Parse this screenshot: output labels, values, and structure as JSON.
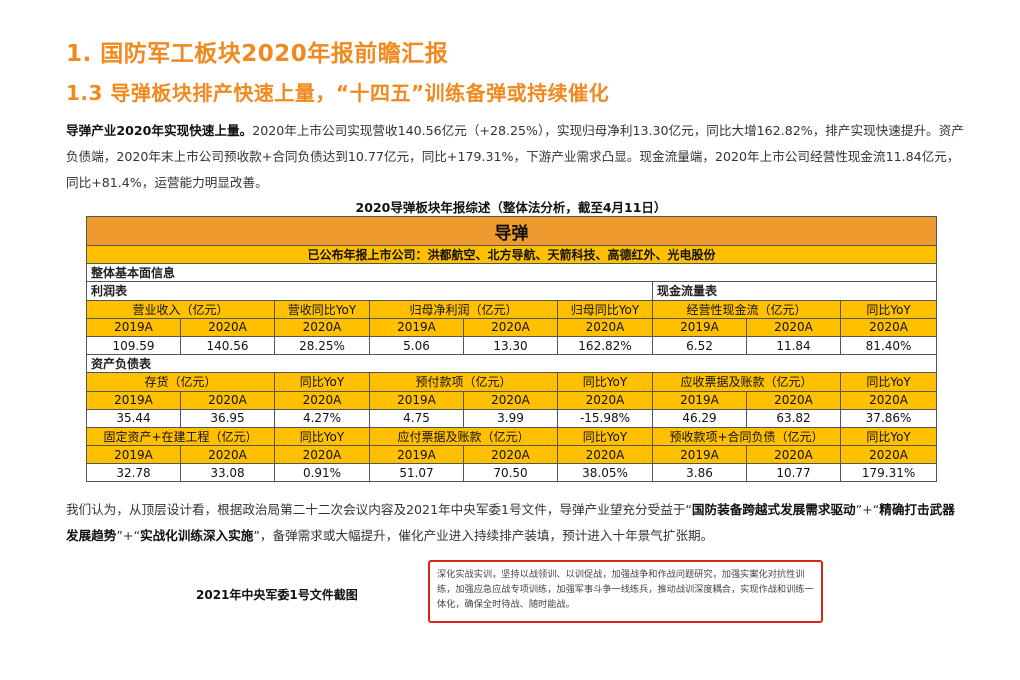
{
  "headings": {
    "h1": "1. 国防军工板块2020年报前瞻汇报",
    "h2": "1.3 导弹板块排产快速上量，“十四五”训练备弹或持续催化"
  },
  "paragraph": {
    "lead": "导弹产业2020年实现快速上量。",
    "body": "2020年上市公司实现营收140.56亿元（+28.25%），实现归母净利13.30亿元，同比大增162.82%，排产实现快速提升。资产负债端，2020年末上市公司预收款+合同负债达到10.77亿元，同比+179.31%，下游产业需求凸显。现金流量端，2020年上市公司经营性现金流11.84亿元，同比+81.4%，运营能力明显改善。"
  },
  "table": {
    "title": "2020导弹板块年报综述（整体法分析，截至4月11日）",
    "sector": "导弹",
    "companies": "已公布年报上市公司：洪都航空、北方导航、天箭科技、高德红外、光电股份",
    "section_overview": "整体基本面信息",
    "section_income": "利润表",
    "section_cashflow": "现金流量表",
    "section_balance": "资产负债表",
    "rows": {
      "income": {
        "h1": "营业收入（亿元）",
        "h2": "营收同比YoY",
        "h3": "归母净利润（亿元）",
        "h4": "归母同比YoY",
        "h5": "经营性现金流（亿元）",
        "h6": "同比YoY",
        "y": [
          "2019A",
          "2020A",
          "2020A",
          "2019A",
          "2020A",
          "2020A",
          "2019A",
          "2020A",
          "2020A"
        ],
        "v": [
          "109.59",
          "140.56",
          "28.25%",
          "5.06",
          "13.30",
          "162.82%",
          "6.52",
          "11.84",
          "81.40%"
        ]
      },
      "balance1": {
        "h1": "存货（亿元）",
        "h2": "同比YoY",
        "h3": "预付款项（亿元）",
        "h4": "同比YoY",
        "h5": "应收票据及账款（亿元）",
        "h6": "同比YoY",
        "y": [
          "2019A",
          "2020A",
          "2020A",
          "2019A",
          "2020A",
          "2020A",
          "2019A",
          "2020A",
          "2020A"
        ],
        "v": [
          "35.44",
          "36.95",
          "4.27%",
          "4.75",
          "3.99",
          "-15.98%",
          "46.29",
          "63.82",
          "37.86%"
        ]
      },
      "balance2": {
        "h1": "固定资产+在建工程（亿元）",
        "h2": "同比YoY",
        "h3": "应付票据及账款（亿元）",
        "h4": "同比YoY",
        "h5": "预收款项+合同负债（亿元）",
        "h6": "同比YoY",
        "y": [
          "2019A",
          "2020A",
          "2020A",
          "2019A",
          "2020A",
          "2020A",
          "2019A",
          "2020A",
          "2020A"
        ],
        "v": [
          "32.78",
          "33.08",
          "0.91%",
          "51.07",
          "70.50",
          "38.05%",
          "3.86",
          "10.77",
          "179.31%"
        ]
      }
    }
  },
  "conclusion": {
    "t1": "我们认为，从顶层设计看，根据政治局第二十二次会议内容及2021年中央军委1号文件，导弹产业望充分受益于“",
    "b1": "国防装备跨越式发展需求驱动",
    "t2": "”+“",
    "b2": "精确打击武器发展趋势",
    "t3": "”+“",
    "b3": "实战化训练深入实施",
    "t4": "”，备弹需求或大幅提升，催化产业进入持续排产装填，预计进入十年景气扩张期。"
  },
  "caption": "2021年中央军委1号文件截图",
  "quote": "深化实战实训，坚持以战领训、以训促战，加强战争和作战问题研究，加强实案化对抗性训练，加强应急应战专项训练，加强军事斗争一线练兵，推动战训深度耦合，实现作战和训练一体化，确保全时待战、随时能战。"
}
